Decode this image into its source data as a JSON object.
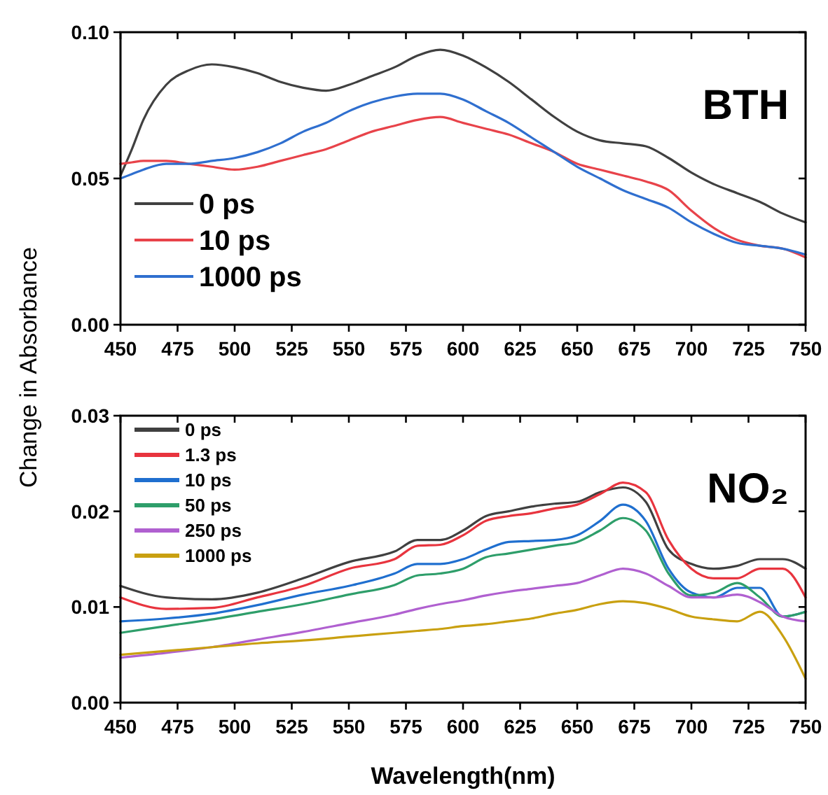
{
  "chart_data": [
    {
      "type": "line",
      "title": "BTH",
      "ylabel": "Change in Absorbance",
      "legend": "left",
      "grid": false,
      "x": [
        450,
        455,
        460,
        470,
        480,
        490,
        500,
        510,
        520,
        530,
        540,
        550,
        560,
        570,
        580,
        590,
        600,
        610,
        620,
        630,
        640,
        650,
        660,
        670,
        680,
        690,
        700,
        710,
        720,
        730,
        740,
        750
      ],
      "xlim": [
        450,
        750
      ],
      "xticks": [
        450,
        475,
        500,
        525,
        550,
        575,
        600,
        625,
        650,
        675,
        700,
        725,
        750
      ],
      "ylim": [
        0,
        0.1
      ],
      "yticks": [
        {
          "value": 0,
          "label": "0.00"
        },
        {
          "value": 0.05,
          "label": "0.05"
        },
        {
          "value": 0.1,
          "label": "0.10"
        }
      ],
      "series": [
        {
          "name": "0 ps",
          "color": "#404040",
          "values": [
            0.051,
            0.06,
            0.07,
            0.082,
            0.087,
            0.089,
            0.088,
            0.086,
            0.083,
            0.081,
            0.08,
            0.082,
            0.085,
            0.088,
            0.092,
            0.094,
            0.092,
            0.088,
            0.083,
            0.077,
            0.071,
            0.066,
            0.063,
            0.062,
            0.061,
            0.057,
            0.052,
            0.048,
            0.045,
            0.042,
            0.038,
            0.035
          ]
        },
        {
          "name": "10 ps",
          "color": "#e8434a",
          "values": [
            0.055,
            0.0555,
            0.056,
            0.056,
            0.055,
            0.054,
            0.053,
            0.054,
            0.056,
            0.058,
            0.06,
            0.063,
            0.066,
            0.068,
            0.07,
            0.071,
            0.069,
            0.067,
            0.065,
            0.062,
            0.059,
            0.055,
            0.053,
            0.051,
            0.049,
            0.046,
            0.039,
            0.033,
            0.029,
            0.027,
            0.026,
            0.023
          ]
        },
        {
          "name": "1000 ps",
          "color": "#2f6fcf",
          "values": [
            0.05,
            0.0515,
            0.053,
            0.055,
            0.055,
            0.056,
            0.057,
            0.059,
            0.062,
            0.066,
            0.069,
            0.073,
            0.076,
            0.078,
            0.079,
            0.079,
            0.077,
            0.073,
            0.069,
            0.064,
            0.059,
            0.054,
            0.05,
            0.046,
            0.043,
            0.04,
            0.035,
            0.031,
            0.028,
            0.027,
            0.026,
            0.024
          ]
        }
      ]
    },
    {
      "type": "line",
      "title": "NO₂",
      "xlabel": "Wavelength(nm)",
      "legend": "top left",
      "grid": false,
      "x": [
        450,
        470,
        490,
        510,
        530,
        550,
        570,
        580,
        590,
        600,
        610,
        620,
        630,
        640,
        650,
        660,
        670,
        680,
        690,
        700,
        710,
        720,
        730,
        740,
        750
      ],
      "xlim": [
        450,
        750
      ],
      "xticks": [
        450,
        475,
        500,
        525,
        550,
        575,
        600,
        625,
        650,
        675,
        700,
        725,
        750
      ],
      "ylim": [
        0,
        0.03
      ],
      "yticks": [
        {
          "value": 0,
          "label": "0.00"
        },
        {
          "value": 0.01,
          "label": "0.01"
        },
        {
          "value": 0.02,
          "label": "0.02"
        },
        {
          "value": 0.03,
          "label": "0.03"
        }
      ],
      "series": [
        {
          "name": "0 ps",
          "color": "#404040",
          "values": [
            0.0122,
            0.011,
            0.0108,
            0.0115,
            0.013,
            0.0147,
            0.0158,
            0.017,
            0.017,
            0.018,
            0.0195,
            0.02,
            0.0205,
            0.0208,
            0.021,
            0.022,
            0.0225,
            0.021,
            0.016,
            0.0145,
            0.014,
            0.0143,
            0.015,
            0.015,
            0.014
          ]
        },
        {
          "name": "1.3 ps",
          "color": "#e8343e",
          "values": [
            0.011,
            0.0098,
            0.0099,
            0.011,
            0.0122,
            0.014,
            0.015,
            0.0164,
            0.0165,
            0.0175,
            0.019,
            0.0195,
            0.0198,
            0.0203,
            0.0207,
            0.0218,
            0.023,
            0.022,
            0.017,
            0.014,
            0.013,
            0.013,
            0.014,
            0.014,
            0.011
          ]
        },
        {
          "name": "10 ps",
          "color": "#1f6fcf",
          "values": [
            0.0085,
            0.0088,
            0.0093,
            0.0102,
            0.0113,
            0.0122,
            0.0135,
            0.0145,
            0.0145,
            0.015,
            0.016,
            0.0168,
            0.0169,
            0.017,
            0.0175,
            0.019,
            0.0207,
            0.019,
            0.014,
            0.0115,
            0.011,
            0.012,
            0.012,
            0.009,
            0.0095
          ]
        },
        {
          "name": "50 ps",
          "color": "#2e9e6a",
          "values": [
            0.0073,
            0.008,
            0.0087,
            0.0095,
            0.0103,
            0.0113,
            0.0123,
            0.0133,
            0.0135,
            0.014,
            0.0152,
            0.0156,
            0.016,
            0.0164,
            0.0168,
            0.018,
            0.0193,
            0.018,
            0.0135,
            0.0112,
            0.0115,
            0.0125,
            0.011,
            0.009,
            0.0095
          ]
        },
        {
          "name": "250 ps",
          "color": "#b060d0",
          "values": [
            0.0047,
            0.0052,
            0.0058,
            0.0066,
            0.0074,
            0.0083,
            0.0092,
            0.0098,
            0.0103,
            0.0107,
            0.0112,
            0.0116,
            0.0119,
            0.0122,
            0.0125,
            0.0133,
            0.014,
            0.0135,
            0.0122,
            0.011,
            0.011,
            0.0113,
            0.0105,
            0.009,
            0.0085
          ]
        },
        {
          "name": "1000 ps",
          "color": "#c9a010",
          "values": [
            0.005,
            0.0054,
            0.0058,
            0.0062,
            0.0065,
            0.0069,
            0.0073,
            0.0075,
            0.0077,
            0.008,
            0.0082,
            0.0085,
            0.0088,
            0.0093,
            0.0097,
            0.0103,
            0.0106,
            0.0104,
            0.0098,
            0.009,
            0.0087,
            0.0085,
            0.0095,
            0.007,
            0.0025
          ]
        }
      ]
    }
  ]
}
